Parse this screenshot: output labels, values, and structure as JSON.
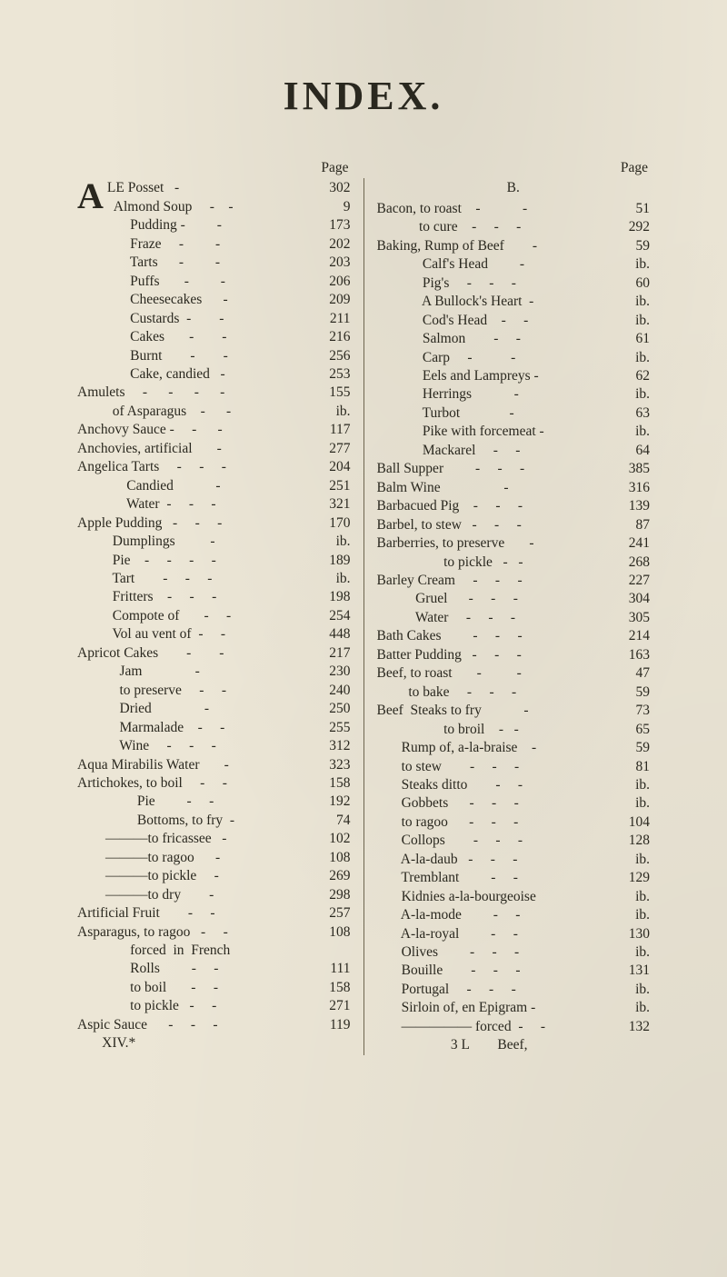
{
  "title": "INDEX.",
  "page_header": "Page",
  "big_initial": "A",
  "section_B": "B.",
  "left_first_two": [
    {
      "label": "LE Posset   -",
      "page": "302"
    },
    {
      "label": "  Almond Soup     -    -",
      "page": "9"
    }
  ],
  "left": [
    {
      "label": "               Pudding -         -",
      "page": "173"
    },
    {
      "label": "               Fraze     -         -",
      "page": "202"
    },
    {
      "label": "               Tarts      -         -",
      "page": "203"
    },
    {
      "label": "               Puffs       -         -",
      "page": "206"
    },
    {
      "label": "               Cheesecakes      -",
      "page": "209"
    },
    {
      "label": "               Custards  -        -",
      "page": "211"
    },
    {
      "label": "               Cakes       -        -",
      "page": "216"
    },
    {
      "label": "               Burnt        -        -",
      "page": "256"
    },
    {
      "label": "               Cake, candied   -",
      "page": "253"
    },
    {
      "label": "Amulets     -      -      -      -",
      "page": "155"
    },
    {
      "label": "          of Asparagus    -      -",
      "page": "ib."
    },
    {
      "label": "Anchovy Sauce -     -      -",
      "page": "117"
    },
    {
      "label": "Anchovies, artificial       -",
      "page": "277"
    },
    {
      "label": "Angelica Tarts     -     -     -",
      "page": "204"
    },
    {
      "label": "              Candied            -",
      "page": "251"
    },
    {
      "label": "              Water  -     -     -",
      "page": "321"
    },
    {
      "label": "Apple Pudding   -     -     -",
      "page": "170"
    },
    {
      "label": "          Dumplings          -",
      "page": "ib."
    },
    {
      "label": "          Pie    -     -     -     -",
      "page": "189"
    },
    {
      "label": "          Tart        -     -     -",
      "page": "ib."
    },
    {
      "label": "          Fritters    -     -     -",
      "page": "198"
    },
    {
      "label": "          Compote of       -     -",
      "page": "254"
    },
    {
      "label": "          Vol au vent of  -     -",
      "page": "448"
    },
    {
      "label": "Apricot Cakes        -        -",
      "page": "217"
    },
    {
      "label": "            Jam               -",
      "page": "230"
    },
    {
      "label": "            to preserve     -     -",
      "page": "240"
    },
    {
      "label": "            Dried               -",
      "page": "250"
    },
    {
      "label": "            Marmalade    -     -",
      "page": "255"
    },
    {
      "label": "            Wine     -     -     -",
      "page": "312"
    },
    {
      "label": "Aqua Mirabilis Water       -",
      "page": "323"
    },
    {
      "label": "Artichokes, to boil     -     -",
      "page": "158"
    },
    {
      "label": "                 Pie         -     -",
      "page": "192"
    },
    {
      "label": "                 Bottoms, to fry  -",
      "page": "74"
    },
    {
      "label": "        ———to fricassee   -",
      "page": "102"
    },
    {
      "label": "        ———to ragoo      -",
      "page": "108"
    },
    {
      "label": "        ———to pickle     -",
      "page": "269"
    },
    {
      "label": "        ———to dry        -",
      "page": "298"
    },
    {
      "label": "Artificial Fruit        -     -",
      "page": "257"
    },
    {
      "label": "Asparagus, to ragoo   -     -",
      "page": "108"
    },
    {
      "label": "               forced  in  French",
      "page": ""
    },
    {
      "label": "               Rolls         -     -",
      "page": "111"
    },
    {
      "label": "               to boil       -     -",
      "page": "158"
    },
    {
      "label": "               to pickle   -     -",
      "page": "271"
    },
    {
      "label": "Aspic Sauce      -     -     -",
      "page": "119"
    },
    {
      "label": "       XIV.*",
      "page": ""
    }
  ],
  "right": [
    {
      "label": "Bacon, to roast    -            -",
      "page": "51"
    },
    {
      "label": "            to cure    -     -     -",
      "page": "292"
    },
    {
      "label": "Baking, Rump of Beef        -",
      "page": "59"
    },
    {
      "label": "             Calf's Head         -",
      "page": "ib."
    },
    {
      "label": "             Pig's     -     -     -",
      "page": "60"
    },
    {
      "label": "             A Bullock's Heart  -",
      "page": "ib."
    },
    {
      "label": "             Cod's Head    -     -",
      "page": "ib."
    },
    {
      "label": "             Salmon        -     -",
      "page": "61"
    },
    {
      "label": "             Carp     -           -",
      "page": "ib."
    },
    {
      "label": "             Eels and Lampreys -",
      "page": "62"
    },
    {
      "label": "             Herrings            -",
      "page": "ib."
    },
    {
      "label": "             Turbot              -",
      "page": "63"
    },
    {
      "label": "             Pike with forcemeat -",
      "page": "ib."
    },
    {
      "label": "             Mackarel     -     -",
      "page": "64"
    },
    {
      "label": "Ball Supper         -     -     -",
      "page": "385"
    },
    {
      "label": "Balm Wine                  -",
      "page": "316"
    },
    {
      "label": "Barbacued Pig    -     -     -",
      "page": "139"
    },
    {
      "label": "Barbel, to stew   -     -     -",
      "page": "87"
    },
    {
      "label": "Barberries, to preserve       -",
      "page": "241"
    },
    {
      "label": "                   to pickle   -   -",
      "page": "268"
    },
    {
      "label": "Barley Cream     -     -     -",
      "page": "227"
    },
    {
      "label": "           Gruel      -     -     -",
      "page": "304"
    },
    {
      "label": "           Water     -     -     -",
      "page": "305"
    },
    {
      "label": "Bath Cakes         -     -     -",
      "page": "214"
    },
    {
      "label": "Batter Pudding   -     -     -",
      "page": "163"
    },
    {
      "label": "Beef, to roast       -          -",
      "page": "47"
    },
    {
      "label": "         to bake     -     -     -",
      "page": "59"
    },
    {
      "label": "Beef  Steaks to fry            -",
      "page": "73"
    },
    {
      "label": "                   to broil    -   -",
      "page": "65"
    },
    {
      "label": "       Rump of, a-la-braise    -",
      "page": "59"
    },
    {
      "label": "       to stew        -     -     -",
      "page": "81"
    },
    {
      "label": "       Steaks ditto        -     -",
      "page": "ib."
    },
    {
      "label": "       Gobbets      -     -     -",
      "page": "ib."
    },
    {
      "label": "       to ragoo      -     -     -",
      "page": "104"
    },
    {
      "label": "       Collops        -     -     -",
      "page": "128"
    },
    {
      "label": "       A-la-daub   -     -     -",
      "page": "ib."
    },
    {
      "label": "       Tremblant         -     -",
      "page": "129"
    },
    {
      "label": "       Kidnies a-la-bourgeoise",
      "page": "ib."
    },
    {
      "label": "       A-la-mode         -     -",
      "page": "ib."
    },
    {
      "label": "       A-la-royal         -     -",
      "page": "130"
    },
    {
      "label": "       Olives         -     -     -",
      "page": "ib."
    },
    {
      "label": "       Bouille        -     -     -",
      "page": "131"
    },
    {
      "label": "       Portugal     -     -     -",
      "page": "ib."
    },
    {
      "label": "       Sirloin of, en Epigram -",
      "page": "ib."
    },
    {
      "label": "       ————— forced  -     -",
      "page": "132"
    },
    {
      "label": "                     3 L        Beef,",
      "page": ""
    }
  ]
}
